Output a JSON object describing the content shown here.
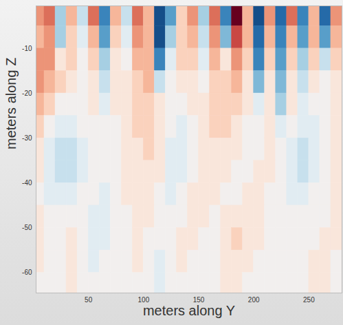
{
  "chart_data": {
    "type": "heatmap",
    "xlabel": "meters along Y",
    "ylabel": "meters along Z",
    "x": [
      5,
      15,
      25,
      35,
      45,
      55,
      65,
      75,
      85,
      95,
      105,
      115,
      125,
      135,
      145,
      155,
      165,
      175,
      185,
      195,
      205,
      215,
      225,
      235,
      245,
      255,
      265,
      275
    ],
    "y": [
      -2.5,
      -7.5,
      -12.5,
      -17.5,
      -22.5,
      -27.5,
      -32.5,
      -37.5,
      -42.5,
      -47.5,
      -52.5,
      -57.5,
      -62.5
    ],
    "values": [
      [
        0.4,
        0.5,
        -0.3,
        0.3,
        -0.2,
        0.5,
        -0.6,
        0.3,
        -0.2,
        0.5,
        0.3,
        -0.8,
        -0.5,
        0.2,
        0.4,
        -0.3,
        0.5,
        -0.6,
        0.9,
        0.3,
        -0.8,
        0.4,
        -0.7,
        0.5,
        -0.6,
        0.3,
        -0.7,
        0.4
      ],
      [
        0.3,
        0.4,
        -0.3,
        0.2,
        -0.1,
        0.3,
        -0.5,
        0.2,
        -0.1,
        0.4,
        0.3,
        -0.8,
        -0.3,
        0.2,
        0.3,
        -0.2,
        0.4,
        -0.4,
        0.6,
        0.3,
        -0.7,
        0.3,
        -0.6,
        0.3,
        -0.5,
        0.3,
        -0.5,
        0.3
      ],
      [
        0.4,
        0.4,
        0.1,
        0.2,
        0.0,
        0.2,
        -0.3,
        0.1,
        0.0,
        0.3,
        0.3,
        -0.6,
        -0.1,
        0.2,
        0.2,
        -0.1,
        0.3,
        0.1,
        0.4,
        0.2,
        -0.6,
        0.2,
        -0.5,
        0.2,
        -0.3,
        0.2,
        -0.2,
        0.2
      ],
      [
        0.4,
        0.3,
        0.2,
        0.1,
        0.0,
        0.1,
        -0.2,
        0.1,
        0.1,
        0.2,
        0.3,
        -0.2,
        0.0,
        0.1,
        0.1,
        0.0,
        0.2,
        0.2,
        0.3,
        0.1,
        -0.4,
        0.1,
        -0.4,
        0.1,
        -0.2,
        0.1,
        0.0,
        0.1
      ],
      [
        0.3,
        0.2,
        0.0,
        0.0,
        0.0,
        0.1,
        -0.1,
        0.1,
        0.1,
        0.2,
        0.2,
        0.1,
        0.0,
        0.0,
        0.1,
        0.1,
        0.2,
        0.2,
        0.2,
        0.1,
        -0.1,
        0.1,
        -0.3,
        0.1,
        -0.1,
        0.0,
        0.0,
        0.1
      ],
      [
        0.2,
        0.0,
        -0.1,
        -0.1,
        0.0,
        0.0,
        0.0,
        0.0,
        0.1,
        0.2,
        0.2,
        0.1,
        0.0,
        -0.1,
        0.0,
        0.1,
        0.2,
        0.2,
        0.1,
        0.0,
        0.0,
        0.1,
        -0.1,
        0.0,
        -0.1,
        -0.1,
        0.0,
        0.1
      ],
      [
        0.1,
        -0.1,
        -0.2,
        -0.2,
        -0.1,
        0.0,
        0.0,
        0.0,
        0.1,
        0.1,
        0.2,
        0.1,
        -0.1,
        -0.1,
        0.0,
        0.1,
        0.1,
        0.1,
        0.1,
        0.0,
        0.0,
        0.1,
        0.0,
        -0.1,
        -0.2,
        -0.1,
        0.0,
        0.1
      ],
      [
        0.1,
        -0.1,
        -0.2,
        -0.2,
        -0.1,
        0.0,
        0.0,
        0.0,
        0.1,
        0.1,
        0.1,
        0.1,
        -0.1,
        -0.1,
        0.0,
        0.1,
        0.1,
        0.1,
        0.0,
        0.0,
        0.1,
        0.1,
        0.0,
        -0.1,
        -0.2,
        -0.1,
        0.0,
        0.1
      ],
      [
        0.0,
        -0.1,
        -0.1,
        -0.1,
        0.0,
        0.0,
        -0.1,
        0.0,
        0.1,
        0.1,
        0.1,
        0.0,
        -0.1,
        0.0,
        0.1,
        0.1,
        0.1,
        0.0,
        0.0,
        0.1,
        0.1,
        0.0,
        0.0,
        -0.1,
        -0.1,
        0.0,
        0.0,
        0.1
      ],
      [
        0.1,
        0.0,
        0.0,
        0.0,
        0.0,
        -0.1,
        -0.1,
        0.0,
        0.0,
        0.1,
        0.1,
        0.0,
        0.0,
        0.0,
        0.1,
        0.1,
        0.0,
        0.1,
        0.1,
        0.1,
        0.1,
        0.0,
        0.0,
        0.0,
        0.0,
        0.0,
        0.0,
        0.1
      ],
      [
        0.1,
        0.0,
        0.0,
        0.1,
        0.0,
        -0.1,
        -0.1,
        0.0,
        0.0,
        0.1,
        0.0,
        0.0,
        0.0,
        0.1,
        0.1,
        0.0,
        0.0,
        0.1,
        0.2,
        0.1,
        0.1,
        0.0,
        0.0,
        0.0,
        0.0,
        0.0,
        0.1,
        0.1
      ],
      [
        0.1,
        0.0,
        0.0,
        0.1,
        0.0,
        -0.1,
        0.0,
        0.0,
        0.0,
        0.1,
        0.0,
        -0.1,
        0.0,
        0.1,
        0.0,
        0.0,
        0.0,
        0.1,
        0.1,
        0.1,
        0.0,
        0.0,
        0.0,
        0.0,
        0.0,
        0.1,
        0.1,
        0.0
      ],
      [
        0.0,
        0.0,
        0.0,
        0.1,
        0.0,
        0.0,
        0.0,
        0.0,
        0.0,
        0.0,
        0.0,
        -0.1,
        0.0,
        0.0,
        0.0,
        0.0,
        0.0,
        0.1,
        0.1,
        0.0,
        0.0,
        0.0,
        0.0,
        0.0,
        0.0,
        0.1,
        0.1,
        0.0
      ]
    ],
    "xlim": [
      2.5,
      280
    ],
    "ylim": [
      -64.5,
      -0.5
    ],
    "xticks": [
      50,
      100,
      150,
      200,
      250
    ],
    "yticks": [
      -10,
      -20,
      -30,
      -40,
      -50,
      -60
    ]
  }
}
